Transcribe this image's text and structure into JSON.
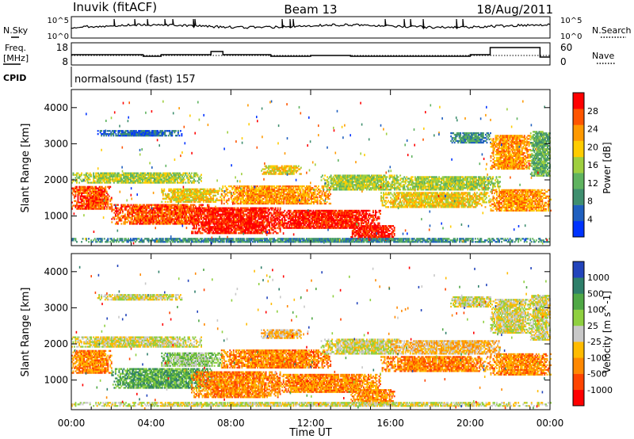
{
  "header": {
    "station": "Inuvik (fitACF)",
    "beam": "Beam 13",
    "date": "18/Aug/2011",
    "cpid_label": "CPID",
    "cpid_value": "normalsound (fast) 157"
  },
  "panels": {
    "nsky": {
      "left_label": "N.Sky",
      "right_label": "N.Search",
      "left_top": "10^5",
      "left_bottom": "10^0",
      "right_top": "10^5",
      "right_bottom": "10^0"
    },
    "freq": {
      "left_label_1": "Freq.",
      "left_label_2": "[MHz]",
      "right_label": "Nave",
      "left_ticks": [
        "18",
        "8"
      ],
      "right_ticks": [
        "60",
        "0"
      ]
    }
  },
  "colors": {
    "power": [
      "#0033ff",
      "#1f5fbf",
      "#3f8f6f",
      "#5fb35f",
      "#9fcf3f",
      "#ffcc00",
      "#ff9900",
      "#ff5500",
      "#ff0000"
    ],
    "velocity": [
      "#2244bb",
      "#2e7f6a",
      "#4fa845",
      "#8fd040",
      "#c8c8c8",
      "#ffbb00",
      "#ff8800",
      "#ff4400",
      "#ff0000"
    ],
    "ground": "#c8c8c8"
  },
  "chart_data": [
    {
      "type": "heatmap",
      "title": "",
      "xlabel": "Time UT",
      "ylabel": "Slant Range [km]",
      "xticks": [
        "00:00",
        "04:00",
        "08:00",
        "12:00",
        "16:00",
        "20:00",
        "00:00"
      ],
      "yticks": [
        "1000",
        "2000",
        "3000",
        "4000"
      ],
      "xlim_hours": [
        0,
        24
      ],
      "ylim_km": [
        180,
        4500
      ],
      "colorbar": {
        "label": "Power [dB]",
        "ticks": [
          "4",
          "8",
          "12",
          "16",
          "20",
          "24",
          "28"
        ],
        "range": [
          0,
          30
        ]
      }
    },
    {
      "type": "heatmap",
      "title": "",
      "xlabel": "Time UT",
      "ylabel": "Slant Range [km]",
      "xticks": [
        "00:00",
        "04:00",
        "08:00",
        "12:00",
        "16:00",
        "20:00",
        "00:00"
      ],
      "yticks": [
        "1000",
        "2000",
        "3000",
        "4000"
      ],
      "xlim_hours": [
        0,
        24
      ],
      "ylim_km": [
        180,
        4500
      ],
      "colorbar": {
        "label": "Velocity [m s^-1]",
        "ticks": [
          "1000",
          "500",
          "100",
          "25",
          "-25",
          "-100",
          "-500",
          "-1000"
        ]
      }
    }
  ]
}
